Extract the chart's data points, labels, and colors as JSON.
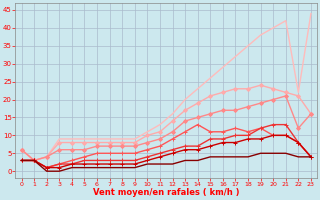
{
  "title": "",
  "xlabel": "Vent moyen/en rafales ( km/h )",
  "background_color": "#cce8ee",
  "grid_color": "#aabbcc",
  "xlim": [
    -0.5,
    23.5
  ],
  "ylim": [
    -2,
    47
  ],
  "yticks": [
    0,
    5,
    10,
    15,
    20,
    25,
    30,
    35,
    40,
    45
  ],
  "xticks": [
    0,
    1,
    2,
    3,
    4,
    5,
    6,
    7,
    8,
    9,
    10,
    11,
    12,
    13,
    14,
    15,
    16,
    17,
    18,
    19,
    20,
    21,
    22,
    23
  ],
  "series": [
    {
      "x": [
        0,
        1,
        2,
        3,
        4,
        5,
        6,
        7,
        8,
        9,
        10,
        11,
        12,
        13,
        14,
        15,
        16,
        17,
        18,
        19,
        20,
        21,
        22,
        23
      ],
      "y": [
        6,
        3,
        4,
        9,
        9,
        9,
        9,
        9,
        9,
        9,
        11,
        13,
        16,
        20,
        23,
        26,
        29,
        32,
        35,
        38,
        40,
        42,
        22,
        44
      ],
      "color": "#ffbbbb",
      "lw": 1.0,
      "marker": null
    },
    {
      "x": [
        0,
        1,
        2,
        3,
        4,
        5,
        6,
        7,
        8,
        9,
        10,
        11,
        12,
        13,
        14,
        15,
        16,
        17,
        18,
        19,
        20,
        21,
        22,
        23
      ],
      "y": [
        6,
        3,
        4,
        8,
        8,
        8,
        8,
        8,
        8,
        8,
        10,
        11,
        14,
        17,
        19,
        21,
        22,
        23,
        23,
        24,
        23,
        22,
        21,
        16
      ],
      "color": "#ffaaaa",
      "lw": 1.0,
      "marker": "D",
      "ms": 2.0
    },
    {
      "x": [
        0,
        1,
        2,
        3,
        4,
        5,
        6,
        7,
        8,
        9,
        10,
        11,
        12,
        13,
        14,
        15,
        16,
        17,
        18,
        19,
        20,
        21,
        22,
        23
      ],
      "y": [
        6,
        3,
        4,
        6,
        6,
        6,
        7,
        7,
        7,
        7,
        8,
        9,
        11,
        14,
        15,
        16,
        17,
        17,
        18,
        19,
        20,
        21,
        12,
        16
      ],
      "color": "#ff8888",
      "lw": 1.0,
      "marker": "D",
      "ms": 2.0
    },
    {
      "x": [
        0,
        1,
        2,
        3,
        4,
        5,
        6,
        7,
        8,
        9,
        10,
        11,
        12,
        13,
        14,
        15,
        16,
        17,
        18,
        19,
        20,
        21,
        22,
        23
      ],
      "y": [
        3,
        3,
        1,
        2,
        3,
        4,
        5,
        5,
        5,
        5,
        6,
        7,
        9,
        11,
        13,
        11,
        11,
        12,
        11,
        12,
        10,
        10,
        8,
        4
      ],
      "color": "#ff5555",
      "lw": 1.0,
      "marker": "+",
      "ms": 3.0
    },
    {
      "x": [
        0,
        1,
        2,
        3,
        4,
        5,
        6,
        7,
        8,
        9,
        10,
        11,
        12,
        13,
        14,
        15,
        16,
        17,
        18,
        19,
        20,
        21,
        22,
        23
      ],
      "y": [
        3,
        3,
        1,
        2,
        2,
        3,
        3,
        3,
        3,
        3,
        4,
        5,
        6,
        7,
        7,
        9,
        9,
        10,
        10,
        12,
        13,
        13,
        8,
        4
      ],
      "color": "#ee3333",
      "lw": 1.0,
      "marker": "+",
      "ms": 3.0
    },
    {
      "x": [
        0,
        1,
        2,
        3,
        4,
        5,
        6,
        7,
        8,
        9,
        10,
        11,
        12,
        13,
        14,
        15,
        16,
        17,
        18,
        19,
        20,
        21,
        22,
        23
      ],
      "y": [
        3,
        3,
        1,
        1,
        2,
        2,
        2,
        2,
        2,
        2,
        3,
        4,
        5,
        6,
        6,
        7,
        8,
        8,
        9,
        9,
        10,
        10,
        8,
        4
      ],
      "color": "#cc0000",
      "lw": 1.0,
      "marker": "+",
      "ms": 3.0
    },
    {
      "x": [
        0,
        1,
        2,
        3,
        4,
        5,
        6,
        7,
        8,
        9,
        10,
        11,
        12,
        13,
        14,
        15,
        16,
        17,
        18,
        19,
        20,
        21,
        22,
        23
      ],
      "y": [
        3,
        3,
        0,
        0,
        1,
        1,
        1,
        1,
        1,
        1,
        2,
        2,
        2,
        3,
        3,
        4,
        4,
        4,
        4,
        5,
        5,
        5,
        4,
        4
      ],
      "color": "#880000",
      "lw": 1.0,
      "marker": null
    }
  ]
}
